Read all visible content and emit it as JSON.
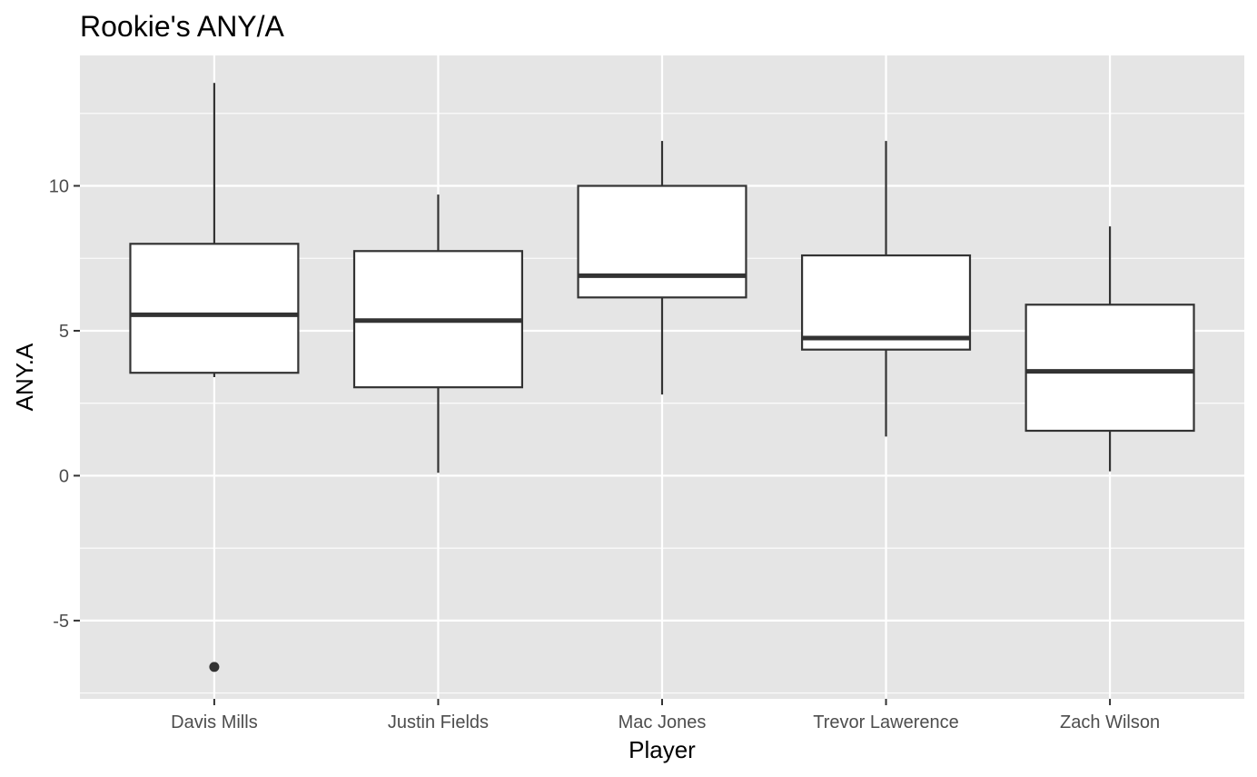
{
  "chart_data": {
    "type": "box",
    "title": "Rookie's ANY/A",
    "xlabel": "Player",
    "ylabel": "ANY.A",
    "ylim": [
      -7.7,
      14.5
    ],
    "y_ticks": [
      -5,
      0,
      5,
      10
    ],
    "y_tick_labels": [
      "-5",
      "0",
      "5",
      "10"
    ],
    "grid": true,
    "categories": [
      "Davis Mills",
      "Justin Fields",
      "Mac Jones",
      "Trevor Lawerence",
      "Zach Wilson"
    ],
    "boxes": [
      {
        "name": "Davis Mills",
        "whisker_low": 3.4,
        "q1": 3.55,
        "median": 5.55,
        "q3": 8.0,
        "whisker_high": 13.55,
        "outliers": [
          -6.6
        ]
      },
      {
        "name": "Justin Fields",
        "whisker_low": 0.1,
        "q1": 3.05,
        "median": 5.35,
        "q3": 7.75,
        "whisker_high": 9.7,
        "outliers": []
      },
      {
        "name": "Mac Jones",
        "whisker_low": 2.8,
        "q1": 6.15,
        "median": 6.9,
        "q3": 10.0,
        "whisker_high": 11.55,
        "outliers": []
      },
      {
        "name": "Trevor Lawerence",
        "whisker_low": 1.35,
        "q1": 4.35,
        "median": 4.75,
        "q3": 7.6,
        "whisker_high": 11.55,
        "outliers": []
      },
      {
        "name": "Zach Wilson",
        "whisker_low": 0.15,
        "q1": 1.55,
        "median": 3.6,
        "q3": 5.9,
        "whisker_high": 8.6,
        "outliers": []
      }
    ],
    "colors": {
      "panel": "#e5e5e5",
      "grid": "#ffffff",
      "box_fill": "#ffffff",
      "box_line": "#333333",
      "tick_label": "#4d4d4d",
      "tick_mark": "#333333"
    }
  }
}
